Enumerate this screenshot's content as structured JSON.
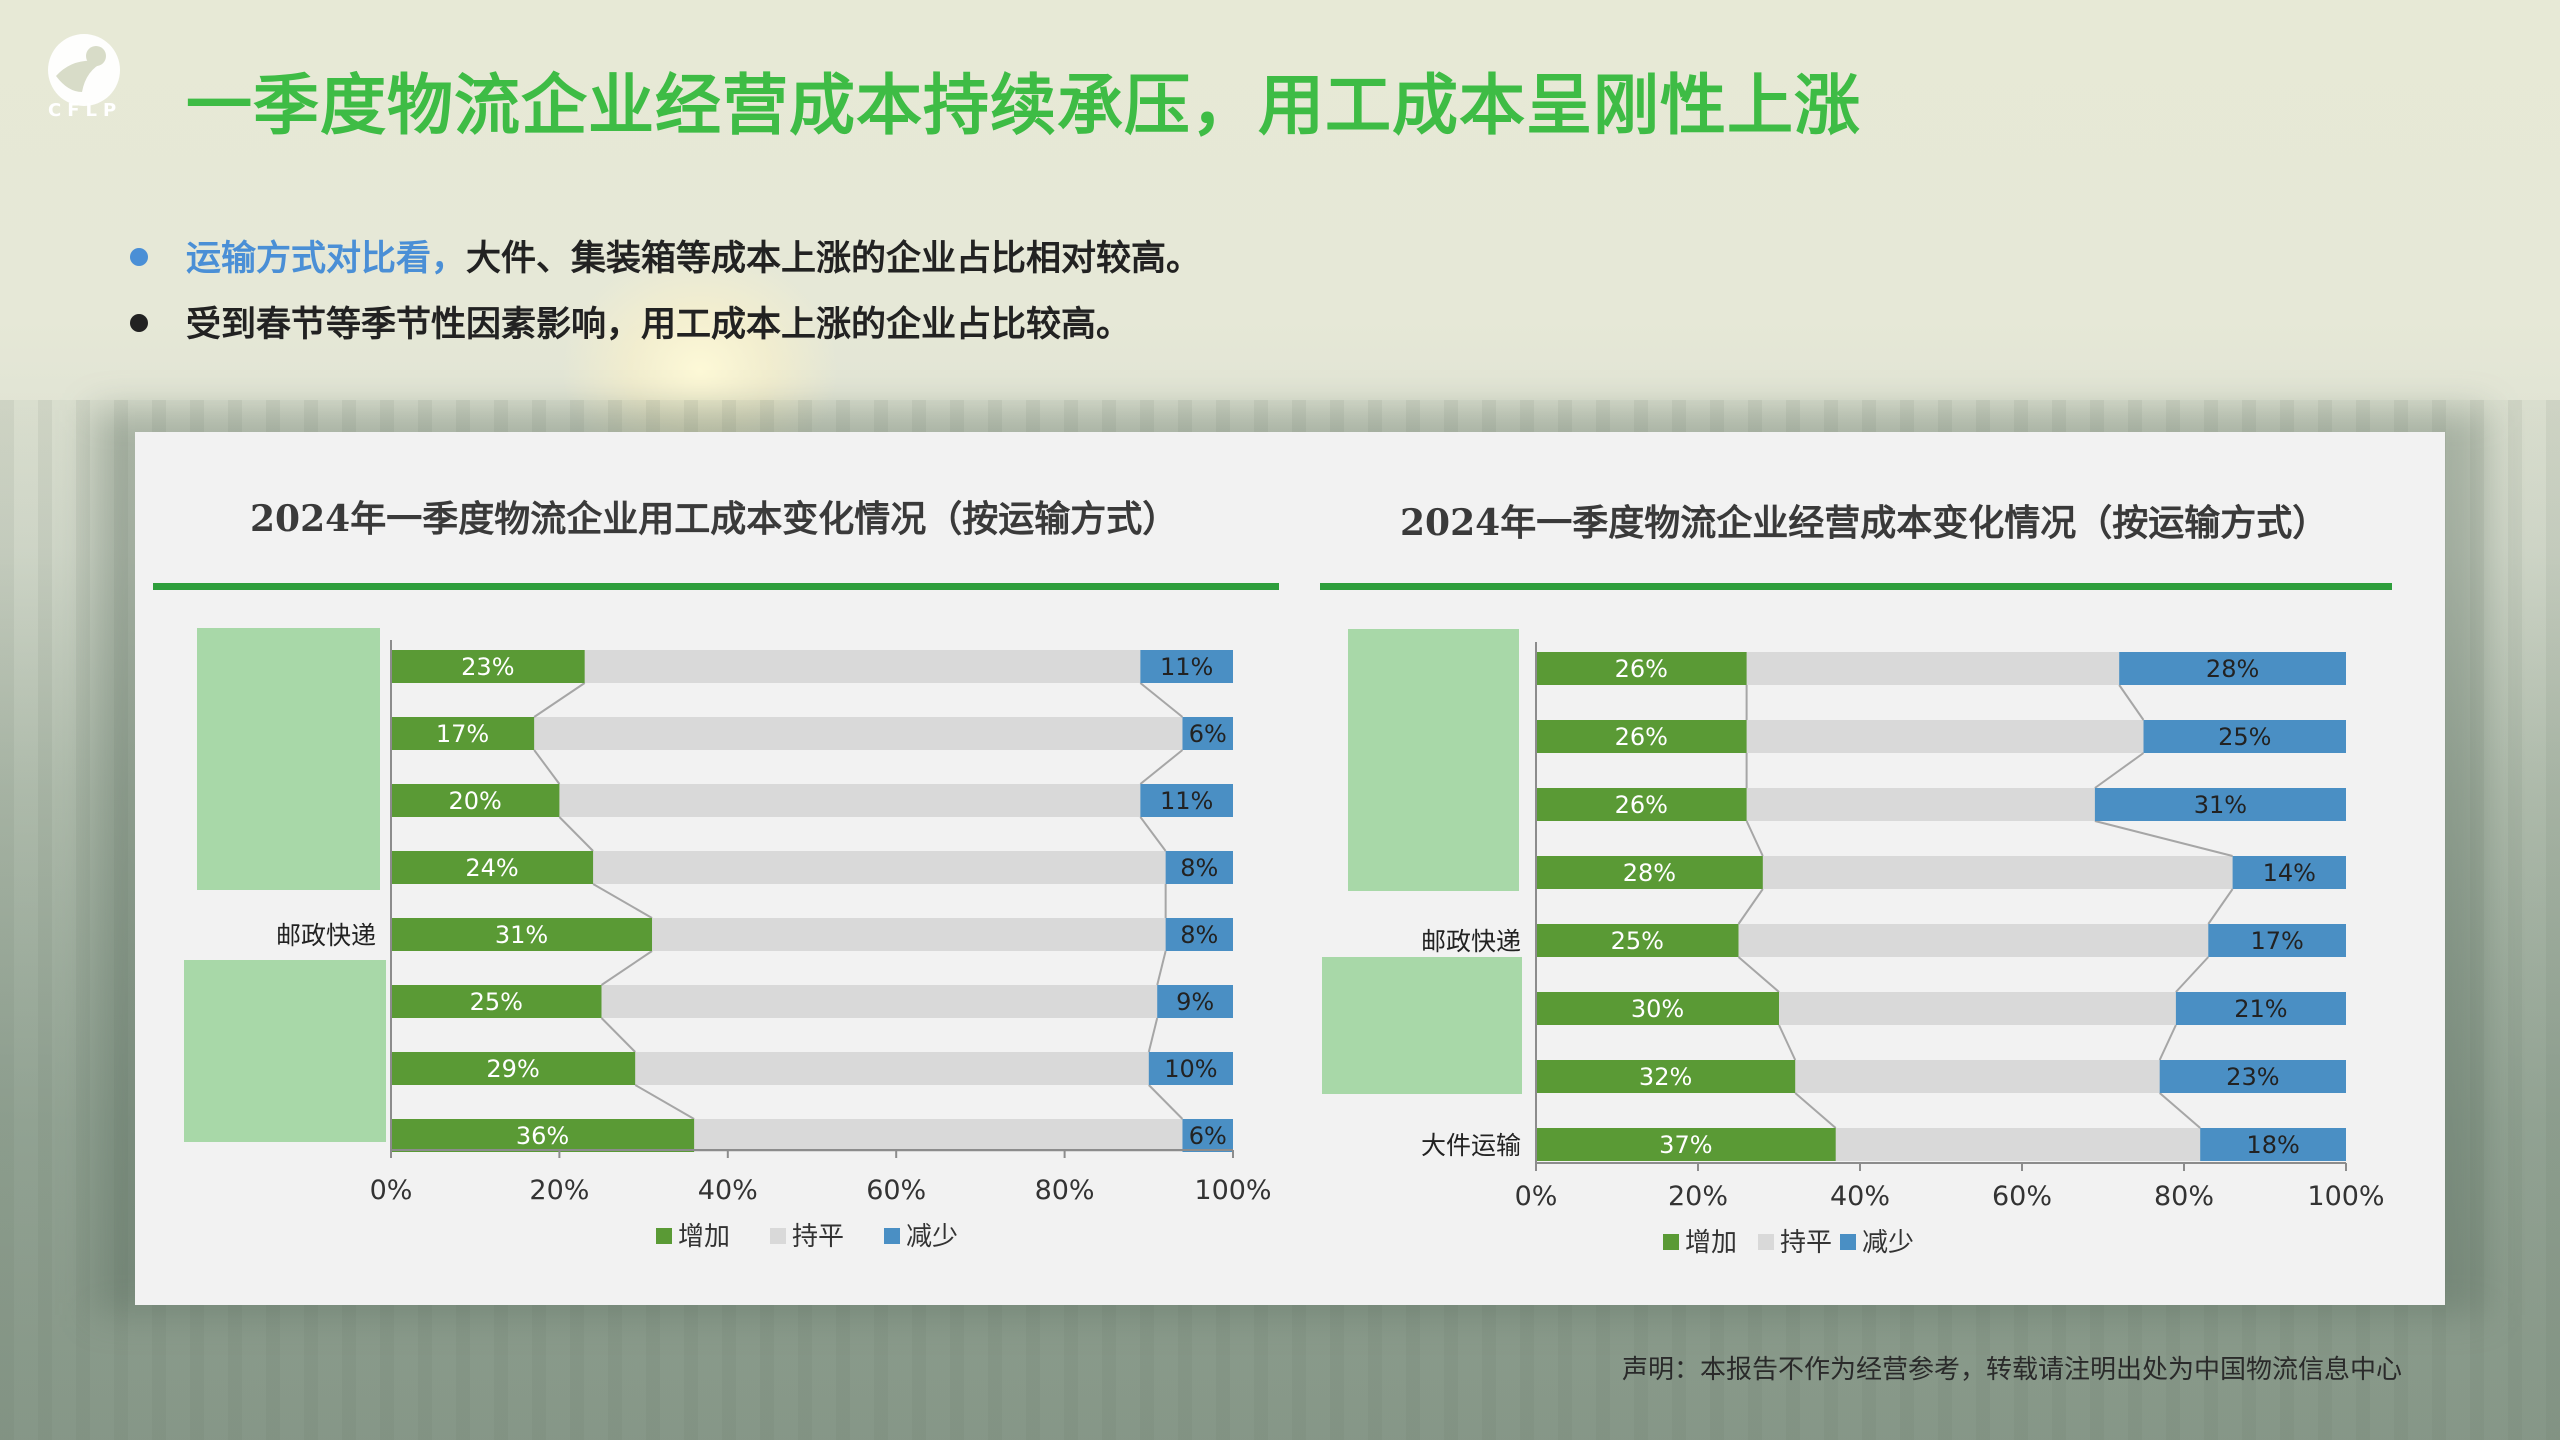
{
  "header": {
    "logo_text": "CFLP",
    "title": "一季度物流企业经营成本持续承压，用工成本呈刚性上涨"
  },
  "bullets": [
    {
      "highlight": "运输方式对比看，",
      "text": "大件、集装箱等成本上涨的企业占比相对较高。",
      "dot_color": "#4a8fd6"
    },
    {
      "highlight": "",
      "text": "受到春节等季节性因素影响，用工成本上涨的企业占比较高。",
      "dot_color": "#222222"
    }
  ],
  "colors": {
    "increase": "#5a9a35",
    "flat": "#d9d9d9",
    "decrease": "#4a8fc4",
    "overlay": "#a8d8a8",
    "rule": "#2e9e3c"
  },
  "chart_data": [
    {
      "type": "bar",
      "stacked": "100%",
      "orientation": "horizontal",
      "title": "2024年一季度物流企业用工成本变化情况（按运输方式）",
      "categories": [
        "",
        "",
        "",
        "",
        "邮政快递",
        "",
        "",
        ""
      ],
      "series": [
        {
          "name": "增加",
          "values": [
            23,
            17,
            20,
            24,
            31,
            25,
            29,
            36
          ]
        },
        {
          "name": "持平",
          "values": [
            66,
            77,
            69,
            68,
            61,
            66,
            61,
            58
          ]
        },
        {
          "name": "减少",
          "values": [
            11,
            6,
            11,
            8,
            8,
            9,
            10,
            6
          ]
        }
      ],
      "xticks": [
        "0%",
        "20%",
        "40%",
        "60%",
        "80%",
        "100%"
      ],
      "xlim": [
        0,
        100
      ],
      "legend": [
        "增加",
        "持平",
        "减少"
      ],
      "legend_position": "bottom"
    },
    {
      "type": "bar",
      "stacked": "100%",
      "orientation": "horizontal",
      "title": "2024年一季度物流企业经营成本变化情况（按运输方式）",
      "categories": [
        "",
        "",
        "",
        "",
        "邮政快递",
        "",
        "",
        "大件运输"
      ],
      "series": [
        {
          "name": "增加",
          "values": [
            26,
            26,
            26,
            28,
            25,
            30,
            32,
            37
          ]
        },
        {
          "name": "持平",
          "values": [
            46,
            49,
            43,
            58,
            58,
            49,
            45,
            45
          ]
        },
        {
          "name": "减少",
          "values": [
            28,
            25,
            31,
            14,
            17,
            21,
            23,
            18
          ]
        }
      ],
      "xticks": [
        "0%",
        "20%",
        "40%",
        "60%",
        "80%",
        "100%"
      ],
      "xlim": [
        0,
        100
      ],
      "legend": [
        "增加",
        "持平",
        "减少"
      ],
      "legend_position": "bottom"
    }
  ],
  "footer": {
    "disclaimer": "声明：本报告不作为经营参考，转载请注明出处为中国物流信息中心"
  }
}
